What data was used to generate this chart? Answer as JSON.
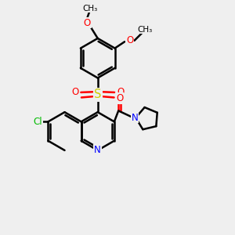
{
  "bg_color": "#efefef",
  "bond_color": "#000000",
  "bond_width": 1.8,
  "atom_colors": {
    "O": "#ff0000",
    "N": "#0000ff",
    "S": "#cccc00",
    "Cl": "#00bb00",
    "C": "#000000"
  },
  "font_size": 8.5,
  "fig_size": [
    3.0,
    3.0
  ],
  "dpi": 100
}
